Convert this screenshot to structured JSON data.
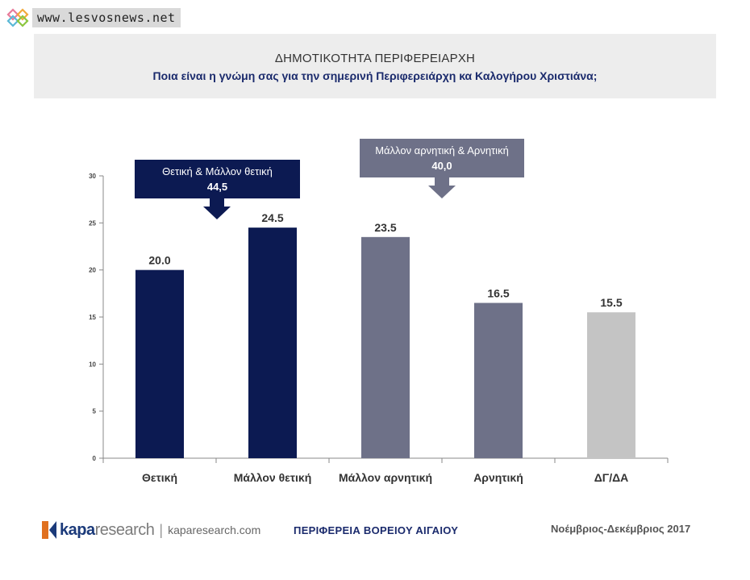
{
  "watermark": {
    "text": "www.lesvosnews.net"
  },
  "header": {
    "title": "ΔΗΜΟΤΙΚΟΤΗΤΑ ΠΕΡΙΦΕΡΕΙΑΡΧΗ",
    "subtitle": "Ποια είναι η γνώμη σας για την σημερινή Περιφερειάρχη κα Καλογήρου Χριστιάνα;"
  },
  "chart_data": {
    "type": "bar",
    "categories": [
      "Θετική",
      "Μάλλον θετική",
      "Μάλλον αρνητική",
      "Αρνητική",
      "ΔΓ/ΔΑ"
    ],
    "values": [
      20.0,
      24.5,
      23.5,
      16.5,
      15.5
    ],
    "value_labels": [
      "20.0",
      "24.5",
      "23.5",
      "16.5",
      "15.5"
    ],
    "bar_colors": [
      "#0c1a52",
      "#0c1a52",
      "#6e7188",
      "#6e7188",
      "#c4c4c4"
    ],
    "ylim": [
      0,
      30
    ],
    "yticks": [
      0,
      5,
      10,
      15,
      20,
      25,
      30
    ],
    "grid": false,
    "callouts": [
      {
        "label": "Θετική & Μάλλον θετική",
        "value": "44,5",
        "color": "#0c1a52",
        "points_to": 1
      },
      {
        "label": "Μάλλον αρνητική & Αρνητική",
        "value": "40,0",
        "color": "#6e7188",
        "points_to": 2
      }
    ]
  },
  "footer": {
    "brand_kapa": "kapa",
    "brand_research": "research",
    "brand_separator": "|",
    "brand_url": "kaparesearch.com",
    "region": "ΠΕΡΙΦΕΡΕΙΑ ΒΟΡΕΙΟΥ ΑΙΓΑΙΟΥ",
    "date": "Νοέμβριος-Δεκέμβριος 2017"
  }
}
